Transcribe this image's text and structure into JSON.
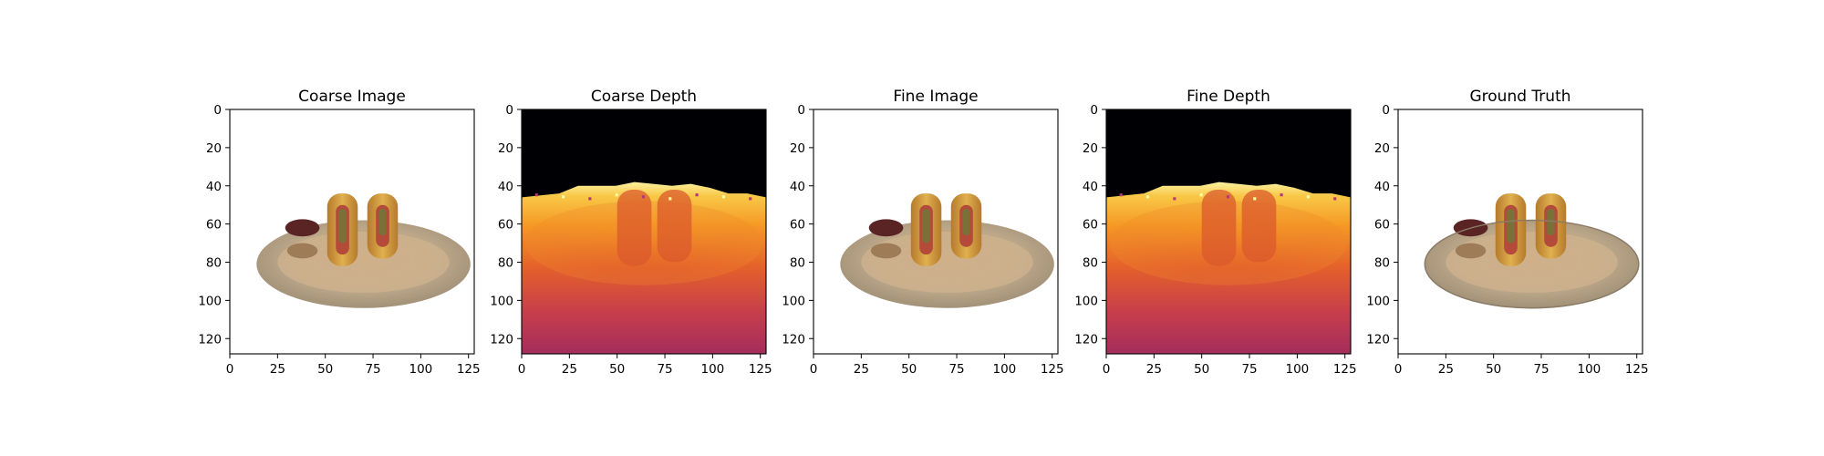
{
  "chart_data": [
    {
      "type": "image",
      "title": "Coarse Image",
      "content": "rgb",
      "x_ticks": [
        0,
        25,
        50,
        75,
        100,
        125
      ],
      "y_ticks": [
        0,
        20,
        40,
        60,
        80,
        100,
        120
      ],
      "xlim": [
        0,
        128
      ],
      "ylim": [
        128,
        0
      ]
    },
    {
      "type": "heatmap",
      "title": "Coarse Depth",
      "content": "depth",
      "colormap": "inferno",
      "x_ticks": [
        0,
        25,
        50,
        75,
        100,
        125
      ],
      "y_ticks": [
        0,
        20,
        40,
        60,
        80,
        100,
        120
      ],
      "xlim": [
        0,
        128
      ],
      "ylim": [
        128,
        0
      ]
    },
    {
      "type": "image",
      "title": "Fine Image",
      "content": "rgb",
      "x_ticks": [
        0,
        25,
        50,
        75,
        100,
        125
      ],
      "y_ticks": [
        0,
        20,
        40,
        60,
        80,
        100,
        120
      ],
      "xlim": [
        0,
        128
      ],
      "ylim": [
        128,
        0
      ]
    },
    {
      "type": "heatmap",
      "title": "Fine Depth",
      "content": "depth",
      "colormap": "inferno",
      "x_ticks": [
        0,
        25,
        50,
        75,
        100,
        125
      ],
      "y_ticks": [
        0,
        20,
        40,
        60,
        80,
        100,
        120
      ],
      "xlim": [
        0,
        128
      ],
      "ylim": [
        128,
        0
      ]
    },
    {
      "type": "image",
      "title": "Ground Truth",
      "content": "rgb",
      "x_ticks": [
        0,
        25,
        50,
        75,
        100,
        125
      ],
      "y_ticks": [
        0,
        20,
        40,
        60,
        80,
        100,
        120
      ],
      "xlim": [
        0,
        128
      ],
      "ylim": [
        128,
        0
      ]
    }
  ],
  "colors": {
    "axis": "#000000",
    "background": "#ffffff",
    "depth_far": "#000004",
    "depth_near": "#fcffa4"
  }
}
